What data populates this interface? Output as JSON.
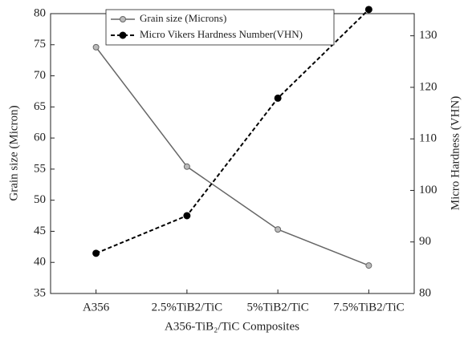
{
  "chart_data": {
    "type": "line",
    "x_label": "A356-TiB₂/TiC Composites",
    "y_label": "Grain size (Micron)",
    "y2_label": "Micro Hardness (VHN)",
    "categories": [
      "A356",
      "2.5%TiB2/TiC",
      "5%TiB2/TiC",
      "7.5%TiB2/TiC"
    ],
    "series": [
      {
        "name": "Grain size (Microns)",
        "color": "#666666",
        "style": "solid",
        "values": [
          74.6,
          55.4,
          45.3,
          39.5
        ]
      },
      {
        "name": "Micro Vikers Hardness Number(VHN)",
        "color": "#000000",
        "style": "dashed",
        "axis": "y2",
        "values": [
          87.8,
          95.1,
          117.9,
          135.1
        ]
      }
    ],
    "ylim": [
      35,
      80
    ],
    "yticks": [
      35,
      40,
      45,
      50,
      55,
      60,
      65,
      70,
      75,
      80
    ],
    "y2lim": [
      80,
      134.3
    ],
    "y2ticks": [
      80,
      90,
      100,
      110,
      120,
      130
    ],
    "legend": "upper-left"
  }
}
